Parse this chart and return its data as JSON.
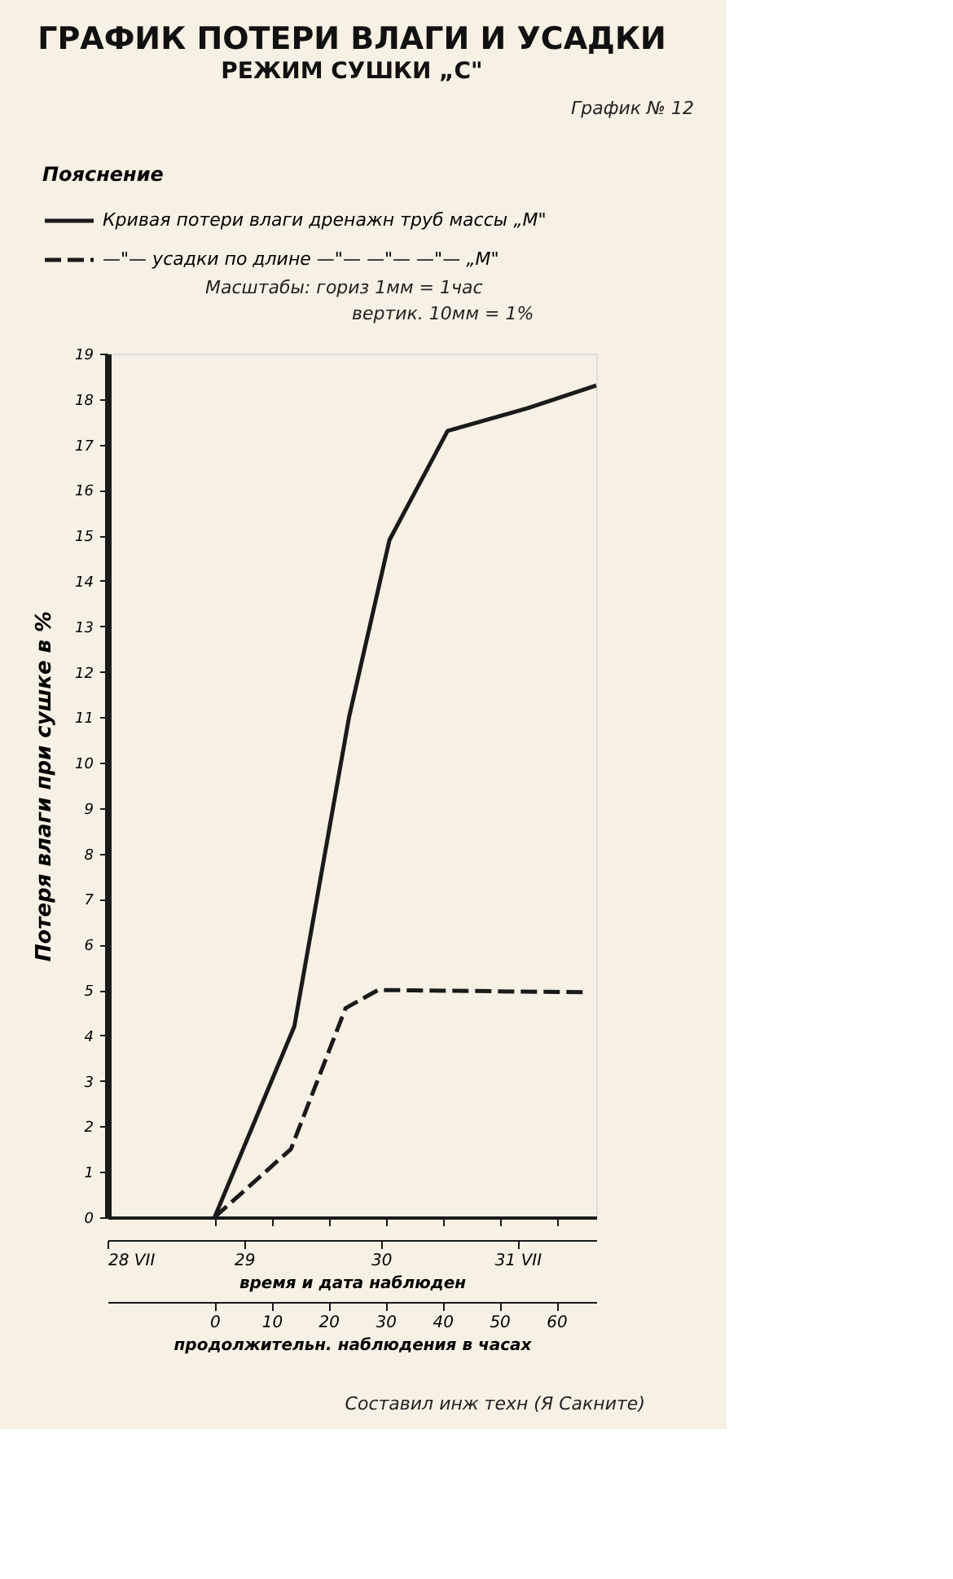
{
  "chart_data": {
    "type": "line",
    "title": "ГРАФИК ПОТЕРИ ВЛАГИ И УСАДКИ",
    "subtitle": "РЕЖИМ СУШКИ „С\"",
    "ylabel": "Потеря влаги при сушке в %",
    "xlabel": "продолжительн. наблюдения в часах",
    "x2label": "время и дата наблюден",
    "legend_title": "Пояснение",
    "legend": "top",
    "xlim": [
      -18.8,
      67
    ],
    "xticks": [
      0,
      10,
      20,
      30,
      40,
      50,
      60
    ],
    "x2lim": [
      28,
      31.575
    ],
    "x2ticks": [
      {
        "value": 28,
        "label": "28 VII"
      },
      29,
      30,
      {
        "value": 31,
        "label": "31 VII"
      }
    ],
    "ylim": [
      0,
      19
    ],
    "yticks": [
      0,
      1,
      2,
      3,
      4,
      5,
      6,
      7,
      8,
      9,
      10,
      11,
      12,
      13,
      14,
      15,
      16,
      17,
      18,
      19
    ],
    "grid": false,
    "marker": "none",
    "series": [
      {
        "name": "Кривая потери влаги дренажн труб массы „М\"",
        "color": "#1a1a1a",
        "line_style": "solid",
        "x": [
          0,
          14,
          23.6,
          30.7,
          40.9,
          55,
          67
        ],
        "values": [
          0,
          4.2,
          11,
          14.9,
          17.3,
          17.8,
          18.3
        ]
      },
      {
        "name": "—\"— усадки по длине —\"— —\"— —\"— „М\"",
        "color": "#1a1a1a",
        "line_style": "dashed",
        "x": [
          0,
          13.4,
          23,
          28.7,
          64.8
        ],
        "values": [
          0,
          1.5,
          4.6,
          5.0,
          4.95
        ]
      }
    ],
    "annotations": [
      "График № 12",
      "Масштабы: гориз 1мм = 1час",
      "вертик. 10мм = 1%",
      "Составил инж техн (Я Сакните)"
    ]
  }
}
